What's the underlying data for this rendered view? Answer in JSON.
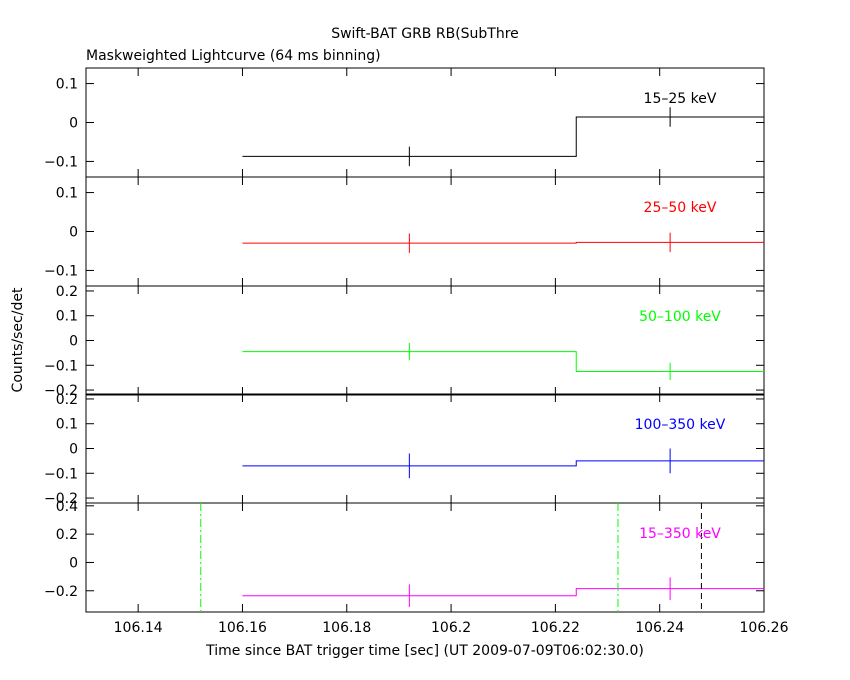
{
  "title": "Swift-BAT GRB RB(SubThre",
  "subtitle": "Maskweighted Lightcurve (64 ms binning)",
  "xlabel": "Time since BAT trigger time [sec] (UT 2009-07-09T06:02:30.0)",
  "ylabel": "Counts/sec/det",
  "colors": {
    "axes": "#000000",
    "band1": "#000000",
    "band2": "#ff0000",
    "band3": "#00ff00",
    "band4": "#0000ff",
    "band5": "#ff00ff",
    "marker_green": "#00ff00",
    "marker_black": "#000000"
  },
  "chart_data": {
    "type": "line",
    "xlim": [
      106.13,
      106.26
    ],
    "xticks": [
      106.14,
      106.16,
      106.18,
      106.2,
      106.22,
      106.24,
      106.26
    ],
    "xtick_labels": [
      "106.14",
      "106.16",
      "106.18",
      "106.2",
      "106.22",
      "106.24",
      "106.26"
    ],
    "panels": [
      {
        "label": "15–25 keV",
        "color": "#000000",
        "ylim": [
          -0.14,
          0.14
        ],
        "yticks": [
          -0.1,
          0,
          0.1
        ],
        "ytick_labels": [
          "−0.1",
          "0",
          "0.1"
        ],
        "bins": [
          {
            "x0": 106.16,
            "x1": 106.224,
            "y": -0.087,
            "err": 0.025
          },
          {
            "x0": 106.224,
            "x1": 106.26,
            "y": 0.014,
            "err": 0.025
          }
        ]
      },
      {
        "label": "25–50 keV",
        "color": "#ff0000",
        "ylim": [
          -0.14,
          0.14
        ],
        "yticks": [
          -0.1,
          0,
          0.1
        ],
        "ytick_labels": [
          "−0.1",
          "0",
          "0.1"
        ],
        "bins": [
          {
            "x0": 106.16,
            "x1": 106.224,
            "y": -0.03,
            "err": 0.025
          },
          {
            "x0": 106.224,
            "x1": 106.26,
            "y": -0.028,
            "err": 0.025
          }
        ]
      },
      {
        "label": "50–100 keV",
        "color": "#00ff00",
        "ylim": [
          -0.22,
          0.22
        ],
        "yticks": [
          -0.2,
          -0.1,
          0,
          0.1,
          0.2
        ],
        "ytick_labels": [
          "−0.2",
          "−0.1",
          "0",
          "0.1",
          "0.2"
        ],
        "bins": [
          {
            "x0": 106.16,
            "x1": 106.224,
            "y": -0.045,
            "err": 0.035
          },
          {
            "x0": 106.224,
            "x1": 106.26,
            "y": -0.125,
            "err": 0.035
          }
        ]
      },
      {
        "label": "100–350 keV",
        "color": "#0000ff",
        "ylim": [
          -0.22,
          0.22
        ],
        "yticks": [
          -0.2,
          -0.1,
          0,
          0.1,
          0.2
        ],
        "ytick_labels": [
          "−0.2",
          "−0.1",
          "0",
          "0.1",
          "0.2"
        ],
        "bins": [
          {
            "x0": 106.16,
            "x1": 106.224,
            "y": -0.07,
            "err": 0.05
          },
          {
            "x0": 106.224,
            "x1": 106.26,
            "y": -0.05,
            "err": 0.05
          }
        ]
      },
      {
        "label": "15–350 keV",
        "color": "#ff00ff",
        "ylim": [
          -0.35,
          0.42
        ],
        "yticks": [
          -0.2,
          0,
          0.2,
          0.4
        ],
        "ytick_labels": [
          "−0.2",
          "0",
          "0.2",
          "0.4"
        ],
        "bins": [
          {
            "x0": 106.16,
            "x1": 106.224,
            "y": -0.235,
            "err": 0.08
          },
          {
            "x0": 106.224,
            "x1": 106.26,
            "y": -0.185,
            "err": 0.08
          }
        ],
        "vlines": [
          {
            "x": 106.152,
            "color": "#00ff00",
            "style": "dashdot"
          },
          {
            "x": 106.232,
            "color": "#00ff00",
            "style": "dashdot"
          },
          {
            "x": 106.248,
            "color": "#000000",
            "style": "dashed"
          }
        ]
      }
    ]
  }
}
